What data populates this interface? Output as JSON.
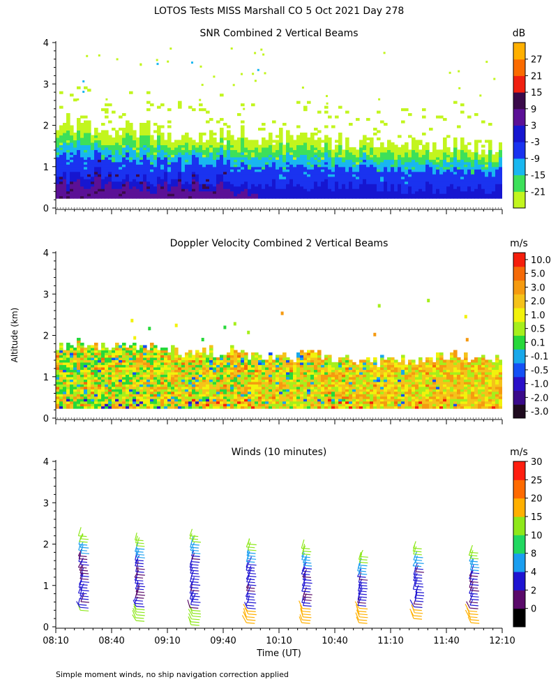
{
  "title": "LOTOS Tests MISS Marshall CO   5 Oct 2021 Day 278",
  "footer": "Simple moment winds, no ship navigation correction applied",
  "chart_data": [
    {
      "type": "heatmap",
      "title": "SNR Combined 2 Vertical Beams",
      "ylabel": "Altitude (km)",
      "xlabel": "",
      "y_ticks": [
        "0",
        "1",
        "2",
        "3",
        "4"
      ],
      "ylim": [
        0,
        4
      ],
      "xlim_minutes": [
        490,
        730
      ],
      "colorbar": {
        "units": "dB",
        "ticks": [
          "-21",
          "-15",
          "-9",
          "-3",
          "3",
          "9",
          "15",
          "21",
          "27"
        ],
        "colors": [
          "#c2f51e",
          "#3de05a",
          "#19b7f0",
          "#1a33f0",
          "#1616d0",
          "#5b1096",
          "#3a0a4a",
          "#f02010",
          "#fb6b00",
          "#ffb000"
        ]
      },
      "observed": {
        "echo_top_km": [
          2.1,
          1.9,
          1.9,
          1.7,
          1.8,
          1.7,
          1.6,
          1.6,
          1.6,
          1.5,
          1.5
        ],
        "strong_echo_top_km": [
          1.0,
          1.1,
          0.9,
          1.0,
          0.9,
          0.8,
          0.8,
          0.8,
          0.7,
          0.8,
          0.7
        ],
        "lowest_gate_km": 0.25
      }
    },
    {
      "type": "heatmap",
      "title": "Doppler Velocity Combined 2 Vertical Beams",
      "ylabel": "Altitude (km)",
      "xlabel": "",
      "y_ticks": [
        "0",
        "1",
        "2",
        "3",
        "4"
      ],
      "ylim": [
        0,
        4
      ],
      "xlim_minutes": [
        490,
        730
      ],
      "colorbar": {
        "units": "m/s",
        "ticks": [
          "10.0",
          "5.0",
          "3.0",
          "2.0",
          "1.0",
          "0.5",
          "0.1",
          "-0.1",
          "-0.5",
          "-1.0",
          "-2.0",
          "-3.0"
        ],
        "colors": [
          "#1e0a1e",
          "#3a0a8a",
          "#2a10c8",
          "#1450f5",
          "#18a8ea",
          "#27d83a",
          "#a6ef1c",
          "#f2f20c",
          "#f5c21a",
          "#f59a10",
          "#f56a08",
          "#f51e0c"
        ]
      },
      "observed": {
        "echo_top_km": [
          1.8,
          1.8,
          1.7,
          1.6,
          1.6,
          1.5,
          1.5,
          1.4,
          1.4,
          1.5,
          1.4
        ],
        "lowest_gate_km": 0.25
      }
    },
    {
      "type": "wind_barbs",
      "title": "Winds (10 minutes)",
      "xlabel": "Time (UT)",
      "ylabel": "Altitude (km)",
      "x_ticks": [
        "08:10",
        "08:40",
        "09:10",
        "09:40",
        "10:10",
        "10:40",
        "11:10",
        "11:40",
        "12:10"
      ],
      "y_ticks": [
        "0",
        "1",
        "2",
        "3",
        "4"
      ],
      "ylim": [
        0,
        4
      ],
      "xlim_minutes": [
        490,
        730
      ],
      "profile_times_minutes": [
        505,
        535,
        565,
        595,
        625,
        655,
        685,
        715
      ],
      "colorbar": {
        "units": "m/s",
        "ticks": [
          "0",
          "2",
          "4",
          "8",
          "10",
          "15",
          "20",
          "25",
          "30"
        ],
        "colors": [
          "#000000",
          "#5a0a6a",
          "#1e14d2",
          "#1a9ef0",
          "#21d860",
          "#8ee81a",
          "#ffb000",
          "#ff6a00",
          "#ff1e10"
        ]
      },
      "profiles": [
        {
          "time": "08:25",
          "top_km": 2.2,
          "bottom_km": 0.4
        },
        {
          "time": "08:55",
          "top_km": 2.1,
          "bottom_km": 0.15
        },
        {
          "time": "09:25",
          "top_km": 2.2,
          "bottom_km": 0.05
        },
        {
          "time": "09:55",
          "top_km": 2.0,
          "bottom_km": 0.1
        },
        {
          "time": "10:25",
          "top_km": 1.9,
          "bottom_km": 0.1
        },
        {
          "time": "10:55",
          "top_km": 1.7,
          "bottom_km": 0.1
        },
        {
          "time": "11:25",
          "top_km": 1.9,
          "bottom_km": 0.2
        },
        {
          "time": "11:55",
          "top_km": 1.8,
          "bottom_km": 0.1
        }
      ]
    }
  ]
}
